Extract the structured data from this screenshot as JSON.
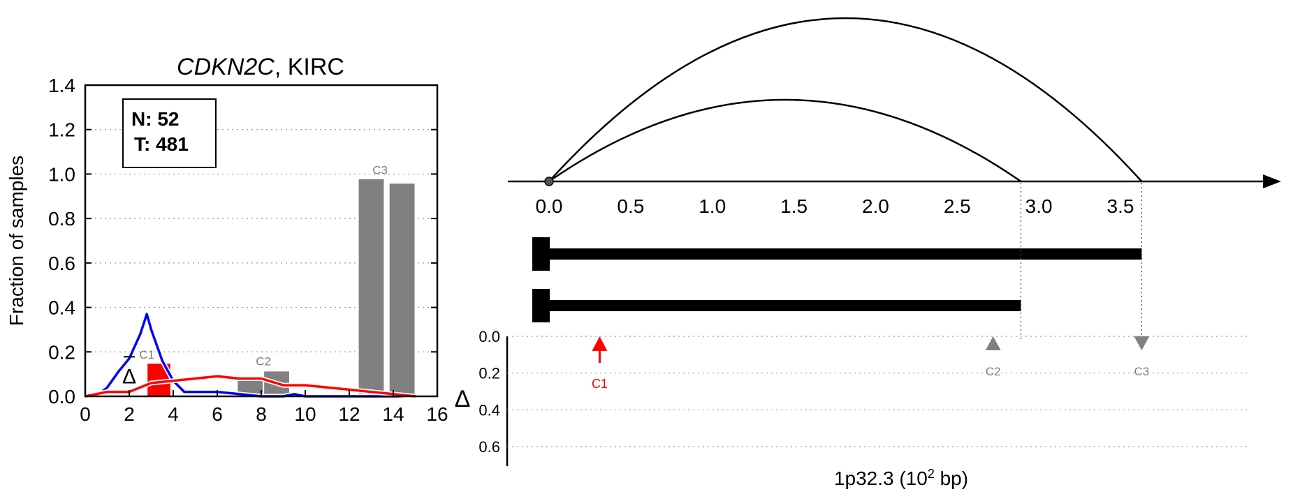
{
  "left_panel": {
    "title_gene": "CDKN2C",
    "title_rest": ", KIRC",
    "legend_n": "N: 52",
    "legend_t": "T: 481",
    "delta_symbol": "Δ"
  },
  "right_panel": {
    "region_label": "1p32.3 (10",
    "region_exp": "2",
    "region_unit": " bp)",
    "delta_symbol": "Δ"
  },
  "chart_data": [
    {
      "type": "bar",
      "title": "CDKN2C, KIRC",
      "xlabel": "",
      "ylabel": "Fraction of samples",
      "xlim": [
        0,
        16
      ],
      "ylim": [
        0,
        1.4
      ],
      "x_ticks": [
        "0",
        "2",
        "4",
        "6",
        "8",
        "10",
        "12",
        "14",
        "16"
      ],
      "y_ticks": [
        "0.0",
        "0.2",
        "0.4",
        "0.6",
        "0.8",
        "1.0",
        "1.2",
        "1.4"
      ],
      "grid": "y-dotted",
      "bars": [
        {
          "label": "C1",
          "color": "#ff0000",
          "x0": 2.8,
          "x1": 3.9,
          "value": 0.15
        },
        {
          "label": "C2",
          "color": "#808080",
          "x0": 6.9,
          "x1": 8.1,
          "value": 0.09
        },
        {
          "label": "C2",
          "color": "#808080",
          "x0": 8.1,
          "x1": 9.3,
          "value": 0.115
        },
        {
          "label": "C3",
          "color": "#808080",
          "x0": 12.4,
          "x1": 13.6,
          "value": 0.98
        },
        {
          "label": "C3",
          "color": "#808080",
          "x0": 13.8,
          "x1": 15.0,
          "value": 0.96
        }
      ],
      "bar_labels": [
        {
          "text": "C1",
          "x": 2.8,
          "y": 0.17
        },
        {
          "text": "C2",
          "x": 8.1,
          "y": 0.14
        },
        {
          "text": "C3",
          "x": 13.4,
          "y": 1.0
        }
      ],
      "series": [
        {
          "color": "#0000ff",
          "x": [
            0.5,
            1.0,
            1.5,
            2.0,
            2.5,
            2.8,
            3.0,
            3.5,
            4.0,
            4.5,
            5.0,
            6.0,
            7.0,
            8.0,
            9.0,
            9.5,
            10.0,
            11.0,
            12.0,
            13.0,
            14.0,
            15.0
          ],
          "y": [
            0.0,
            0.04,
            0.11,
            0.17,
            0.28,
            0.37,
            0.3,
            0.16,
            0.07,
            0.02,
            0.02,
            0.02,
            0.01,
            0.0,
            0.0,
            0.01,
            0.0,
            0.0,
            0.0,
            0.0,
            0.0,
            0.0
          ]
        },
        {
          "color": "#ff0000",
          "x": [
            0.0,
            1.0,
            2.0,
            2.5,
            3.0,
            4.0,
            5.0,
            6.0,
            7.0,
            8.0,
            9.0,
            10.0,
            11.0,
            12.0,
            13.0,
            14.0,
            15.0
          ],
          "y": [
            0.0,
            0.02,
            0.02,
            0.04,
            0.06,
            0.07,
            0.08,
            0.09,
            0.08,
            0.08,
            0.05,
            0.05,
            0.04,
            0.03,
            0.02,
            0.01,
            0.0
          ]
        }
      ],
      "markers": [
        {
          "text": "Δ",
          "x": 2.0,
          "y": 0.09
        }
      ],
      "legend": {
        "placement": "top-left",
        "entries": [
          "N: 52",
          "T: 481"
        ]
      }
    },
    {
      "type": "line",
      "xlabel": "1p32.3 (10^2 bp)",
      "xlim": [
        0.0,
        3.75
      ],
      "x_ticks": [
        "0.0",
        "0.5",
        "1.0",
        "1.5",
        "2.0",
        "2.5",
        "3.0",
        "3.5"
      ],
      "arcs": [
        {
          "from": 0.0,
          "to": 3.63
        },
        {
          "from": 0.0,
          "to": 2.89
        }
      ],
      "transcripts": [
        {
          "start": 0.0,
          "end": 3.63
        },
        {
          "start": 0.0,
          "end": 2.89
        }
      ],
      "delta_axis": {
        "label": "Δ",
        "ylim": [
          0.0,
          0.6
        ],
        "y_ticks": [
          "0.0",
          "0.2",
          "0.4",
          "0.6"
        ]
      },
      "markers": [
        {
          "label": "C1",
          "pos": 0.31,
          "delta": 0.08,
          "shape": "arrow-up",
          "color": "#ff0000"
        },
        {
          "label": "C2",
          "pos": 2.72,
          "delta": 0.0,
          "shape": "triangle-up",
          "color": "#808080"
        },
        {
          "label": "C3",
          "pos": 3.63,
          "delta": 0.0,
          "shape": "triangle-down",
          "color": "#808080"
        }
      ]
    }
  ]
}
